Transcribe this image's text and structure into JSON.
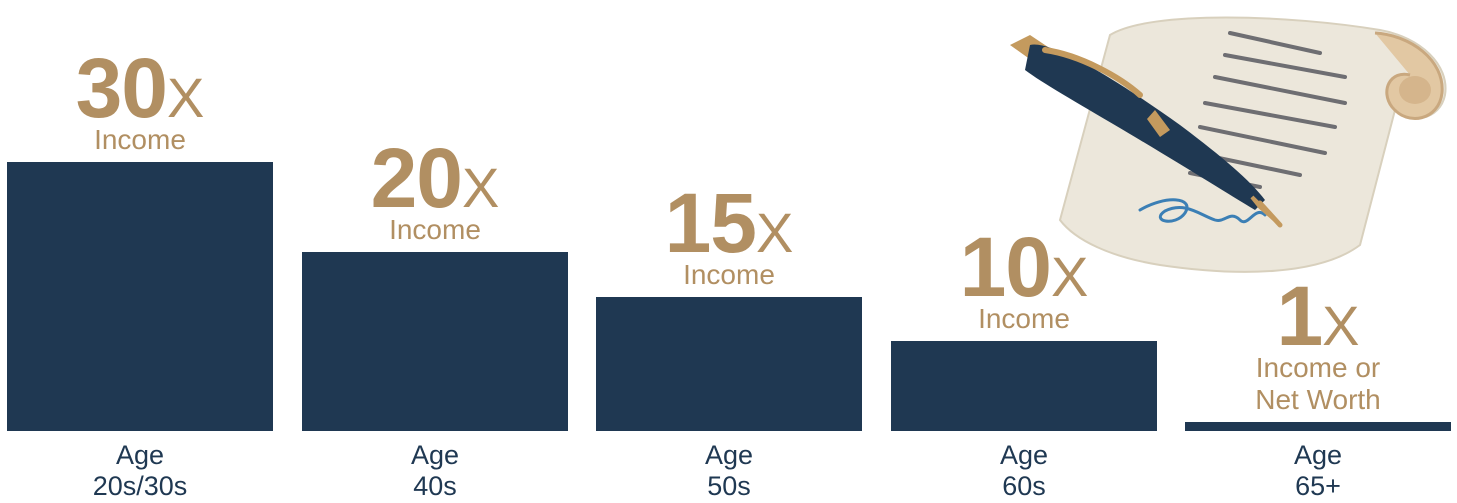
{
  "chart_data": {
    "type": "bar",
    "title": "",
    "xlabel": "",
    "ylabel": "",
    "ylim": [
      0,
      32
    ],
    "categories": [
      {
        "line1": "Age",
        "line2": "20s/30s"
      },
      {
        "line1": "Age",
        "line2": "40s"
      },
      {
        "line1": "Age",
        "line2": "50s"
      },
      {
        "line1": "Age",
        "line2": "60s"
      },
      {
        "line1": "Age",
        "line2": "65+"
      }
    ],
    "values": [
      30,
      20,
      15,
      10,
      1
    ],
    "data_labels": [
      {
        "number": "30",
        "suffix": "X",
        "caption_lines": [
          "Income"
        ]
      },
      {
        "number": "20",
        "suffix": "X",
        "caption_lines": [
          "Income"
        ]
      },
      {
        "number": "15",
        "suffix": "X",
        "caption_lines": [
          "Income"
        ]
      },
      {
        "number": "10",
        "suffix": "X",
        "caption_lines": [
          "Income"
        ]
      },
      {
        "number": "1",
        "suffix": "X",
        "caption_lines": [
          "Income or",
          "Net Worth"
        ]
      }
    ],
    "colors": {
      "bar": "#1f3852",
      "label": "#b18f62",
      "category_text": "#1f3852"
    },
    "grid": false,
    "legend": "none"
  },
  "illustration": {
    "icon": "pen-signing-scroll-icon",
    "colors": {
      "pen_body": "#1f3852",
      "pen_trim": "#c49a5e",
      "paper": "#ece7db",
      "signature": "#3b7fb5"
    }
  }
}
